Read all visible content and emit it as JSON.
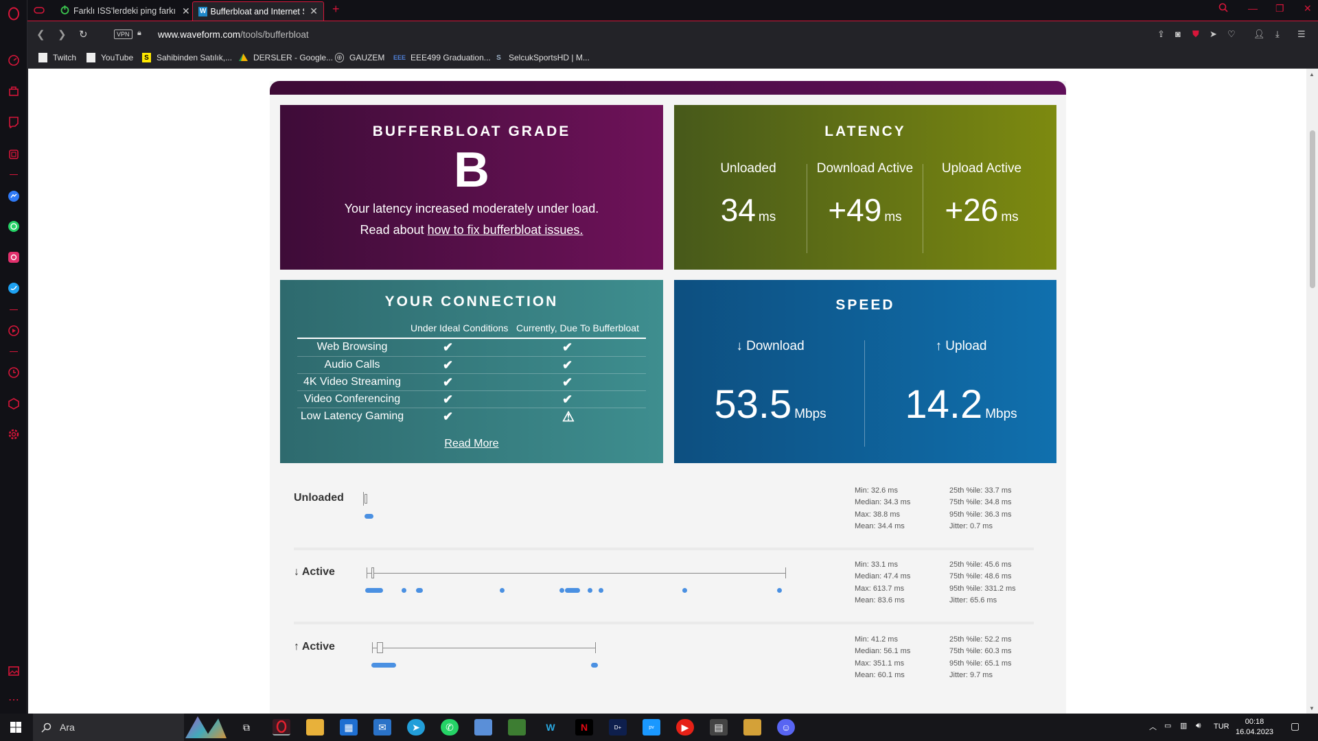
{
  "browser": {
    "tabs": [
      {
        "title": "Farklı ISS'lerdeki ping farkı",
        "active": false
      },
      {
        "title": "Bufferbloat and Internet Sp",
        "active": true
      }
    ],
    "url_domain": "www.waveform.com",
    "url_path": "/tools/bufferbloat",
    "vpn_label": "VPN",
    "bookmarks": [
      "Twitch",
      "YouTube",
      "Sahibinden Satılık,...",
      "DERSLER - Google...",
      "GAUZEM",
      "EEE499 Graduation...",
      "SelcukSportsHD | M..."
    ]
  },
  "grade": {
    "title": "BUFFERBLOAT GRADE",
    "letter": "B",
    "desc": "Your latency increased moderately under load.",
    "read_prefix": "Read about",
    "read_link": "how to fix bufferbloat issues."
  },
  "latency": {
    "title": "LATENCY",
    "cols": [
      {
        "label": "Unloaded",
        "value": "34",
        "unit": "ms"
      },
      {
        "label": "Download Active",
        "value": "+49",
        "unit": "ms"
      },
      {
        "label": "Upload Active",
        "value": "+26",
        "unit": "ms"
      }
    ]
  },
  "connection": {
    "title": "YOUR CONNECTION",
    "head1": "Under Ideal Conditions",
    "head2": "Currently, Due To Bufferbloat",
    "rows": [
      {
        "label": "Web Browsing",
        "ideal": "✔",
        "current": "✔"
      },
      {
        "label": "Audio Calls",
        "ideal": "✔",
        "current": "✔"
      },
      {
        "label": "4K Video Streaming",
        "ideal": "✔",
        "current": "✔"
      },
      {
        "label": "Video Conferencing",
        "ideal": "✔",
        "current": "✔"
      },
      {
        "label": "Low Latency Gaming",
        "ideal": "✔",
        "current": "⚠"
      }
    ],
    "read_more": "Read More"
  },
  "speed": {
    "title": "SPEED",
    "download": {
      "label": "↓ Download",
      "value": "53.5",
      "unit": "Mbps"
    },
    "upload": {
      "label": "↑ Upload",
      "value": "14.2",
      "unit": "Mbps"
    }
  },
  "stats": [
    {
      "label": "Unloaded",
      "left": [
        "Min: 32.6 ms",
        "Median: 34.3 ms",
        "Max: 38.8 ms",
        "Mean: 34.4 ms"
      ],
      "right": [
        "25th %ile: 33.7 ms",
        "75th %ile: 34.8 ms",
        "95th %ile: 36.3 ms",
        "Jitter: 0.7 ms"
      ]
    },
    {
      "label": "↓ Active",
      "left": [
        "Min: 33.1 ms",
        "Median: 47.4 ms",
        "Max: 613.7 ms",
        "Mean: 83.6 ms"
      ],
      "right": [
        "25th %ile: 45.6 ms",
        "75th %ile: 48.6 ms",
        "95th %ile: 331.2 ms",
        "Jitter: 65.6 ms"
      ]
    },
    {
      "label": "↑ Active",
      "left": [
        "Min: 41.2 ms",
        "Median: 56.1 ms",
        "Max: 351.1 ms",
        "Mean: 60.1 ms"
      ],
      "right": [
        "25th %ile: 52.2 ms",
        "75th %ile: 60.3 ms",
        "95th %ile: 65.1 ms",
        "Jitter: 9.7 ms"
      ]
    }
  ],
  "taskbar": {
    "search_placeholder": "Ara",
    "lang": "TUR",
    "time": "00:18",
    "date": "16.04.2023"
  },
  "colors": {
    "accent": "#d8163a",
    "dot": "#4a90e2"
  }
}
